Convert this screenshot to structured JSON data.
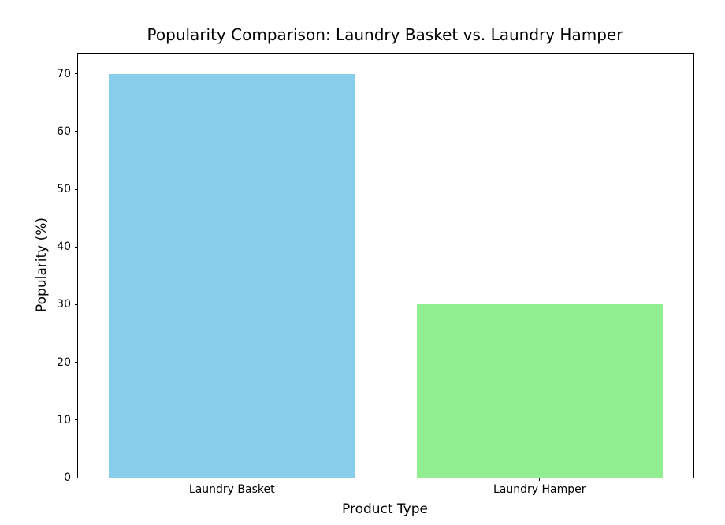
{
  "chart_data": {
    "type": "bar",
    "title": "Popularity Comparison: Laundry Basket vs. Laundry Hamper",
    "xlabel": "Product Type",
    "ylabel": "Popularity (%)",
    "categories": [
      "Laundry Basket",
      "Laundry Hamper"
    ],
    "values": [
      70,
      30
    ],
    "bar_colors": [
      "#87CEEB",
      "#90EE90"
    ],
    "yticks": [
      0,
      10,
      20,
      30,
      40,
      50,
      60,
      70
    ],
    "ylim": [
      0,
      73.5
    ],
    "bar_width_fraction": 0.8,
    "grid": false,
    "legend_position": "none",
    "axis_color": "#000000",
    "text_color": "#000000",
    "background_color": "#ffffff"
  }
}
